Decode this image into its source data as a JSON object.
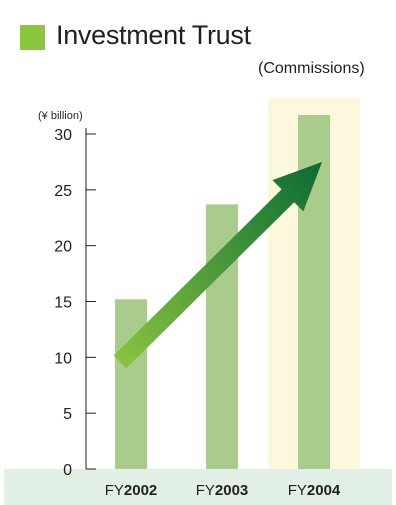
{
  "header": {
    "title": "Investment Trust",
    "subtitle": "(Commissions)"
  },
  "colors": {
    "title_box": "#8cc63f",
    "bar": "#a9cc8c",
    "highlight_column": "#fbf8dc",
    "bottom_band": "#e2efe5",
    "arrow_start": "#8cc63f",
    "arrow_end": "#0a6b35"
  },
  "chart_data": {
    "type": "bar",
    "unit_label": "(¥ billion)",
    "categories": [
      "2002",
      "2003",
      "2004"
    ],
    "category_prefix": "FY",
    "values": [
      15.2,
      23.7,
      31.7
    ],
    "ylim": [
      0,
      30
    ],
    "yticks": [
      0,
      5,
      10,
      15,
      20,
      25,
      30
    ],
    "highlight_category": "2004",
    "trend_arrow": true,
    "grid": false
  }
}
